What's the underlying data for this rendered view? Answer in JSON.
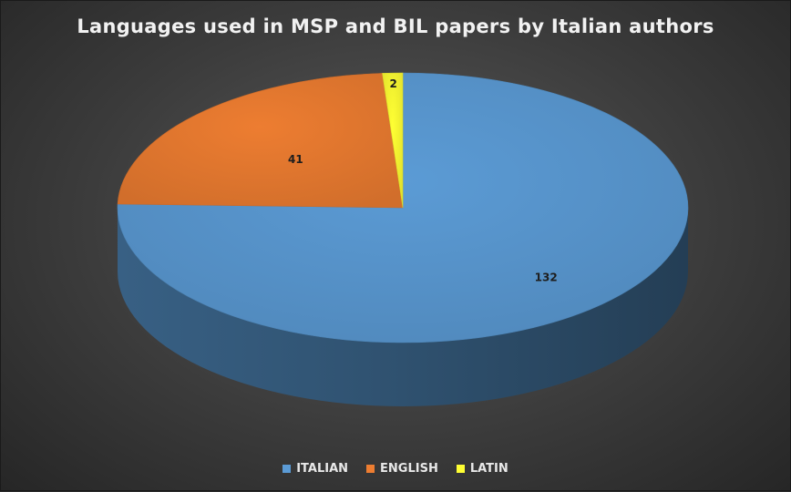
{
  "chart_data": {
    "type": "pie",
    "title": "Languages used in MSP and BIL papers by Italian authors",
    "categories": [
      "ITALIAN",
      "ENGLISH",
      "LATIN"
    ],
    "values": [
      132,
      41,
      2
    ],
    "data_labels": [
      "132",
      "41",
      "2"
    ],
    "colors": [
      "#5b9bd5",
      "#ed7d31",
      "#ffff33"
    ],
    "legend_position": "bottom",
    "style": "3d"
  }
}
